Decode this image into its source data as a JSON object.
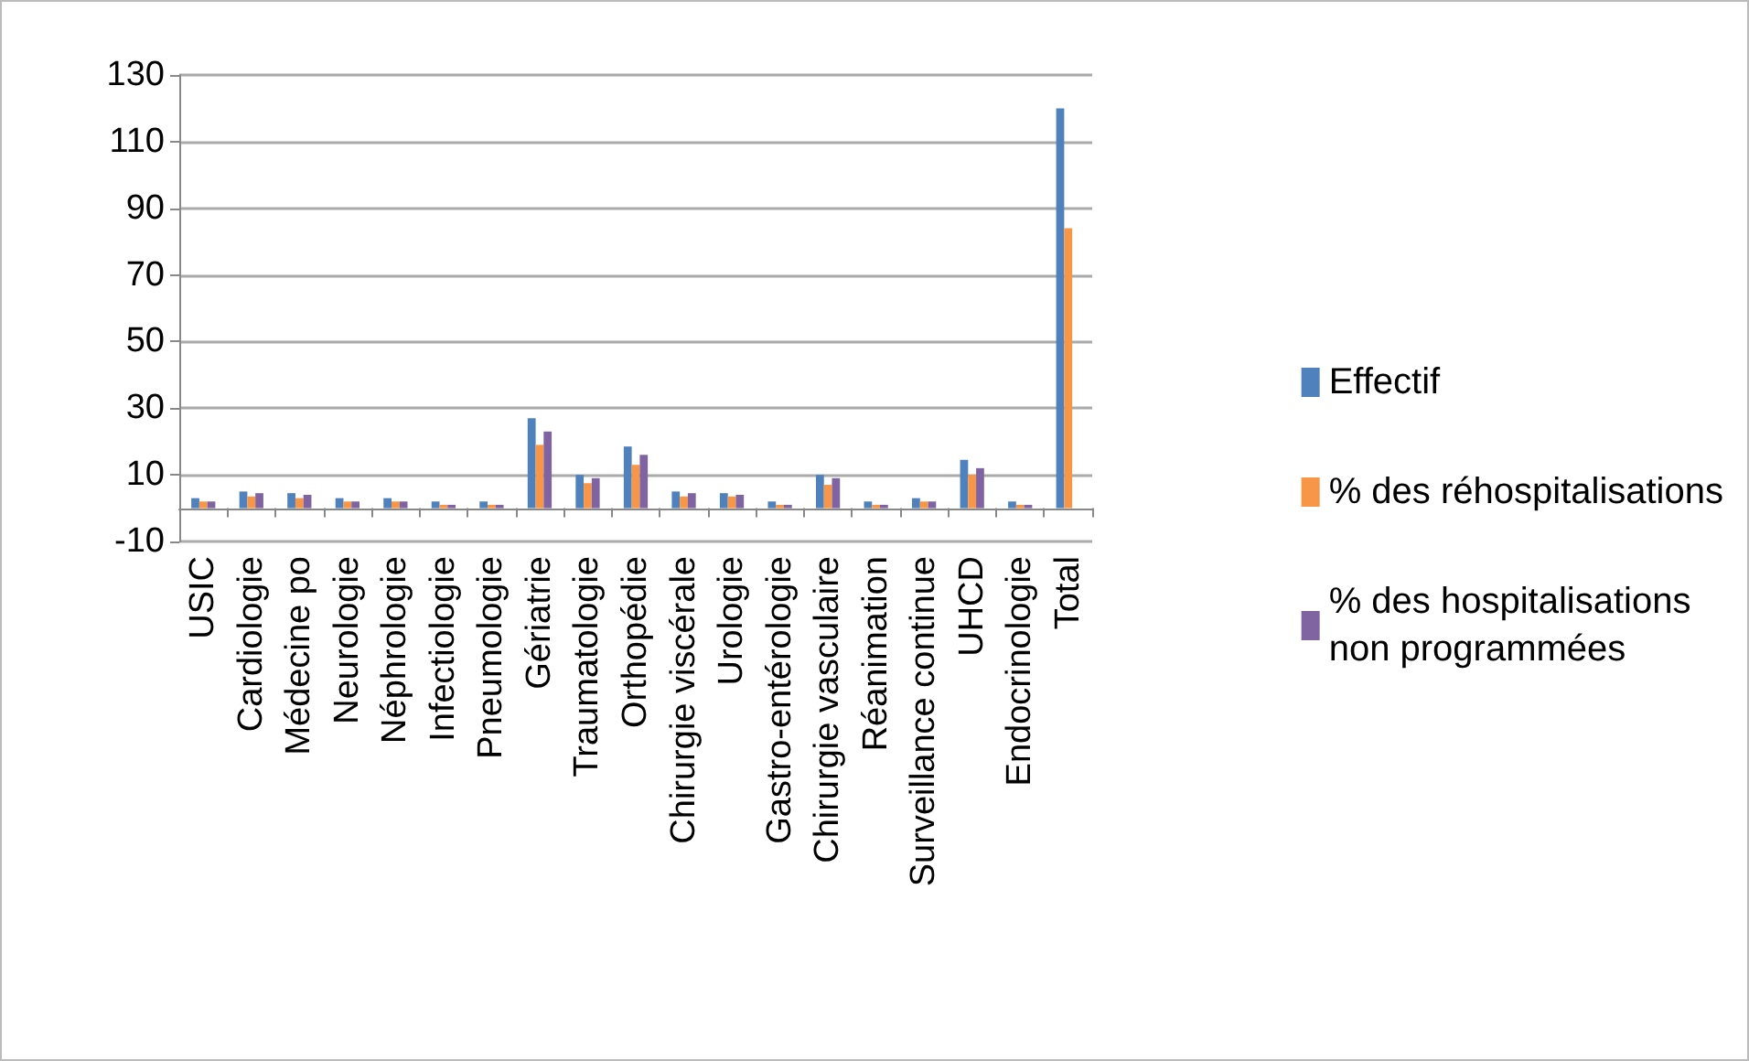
{
  "chart_data": {
    "type": "bar",
    "categories": [
      "USIC",
      "Cardiologie",
      "Médecine po",
      "Neurologie",
      "Néphrologie",
      "Infectiologie",
      "Pneumologie",
      "Gériatrie",
      "Traumatologie",
      "Orthopédie",
      "Chirurgie viscérale",
      "Urologie",
      "Gastro-entérologie",
      "Chirurgie vasculaire",
      "Réanimation",
      "Surveillance continue",
      "UHCD",
      "Endocrinologie",
      "Total"
    ],
    "series": [
      {
        "name": "Effectif",
        "color": "#4f81bd",
        "values": [
          3,
          5,
          4.5,
          3,
          3,
          2,
          2,
          27,
          10,
          18.5,
          5,
          4.5,
          2,
          10,
          2,
          3,
          14.5,
          2,
          120
        ]
      },
      {
        "name": "% des réhospitalisations",
        "color": "#f79646",
        "values": [
          2,
          3.5,
          3,
          2,
          2,
          1,
          1,
          19,
          7.5,
          13,
          3.5,
          3.5,
          1,
          7,
          1,
          2,
          10,
          1,
          84
        ]
      },
      {
        "name": "% des hospitalisations\nnon programmées",
        "color": "#8064a2",
        "values": [
          2,
          4.5,
          4,
          2,
          2,
          1,
          1,
          23,
          9,
          16,
          4.5,
          4,
          1,
          9,
          1,
          2,
          12,
          1,
          null
        ]
      }
    ],
    "ylim": [
      -10,
      130
    ],
    "yticks": [
      -10,
      10,
      30,
      50,
      70,
      90,
      110,
      130
    ],
    "grid": "y",
    "legend": "right"
  }
}
